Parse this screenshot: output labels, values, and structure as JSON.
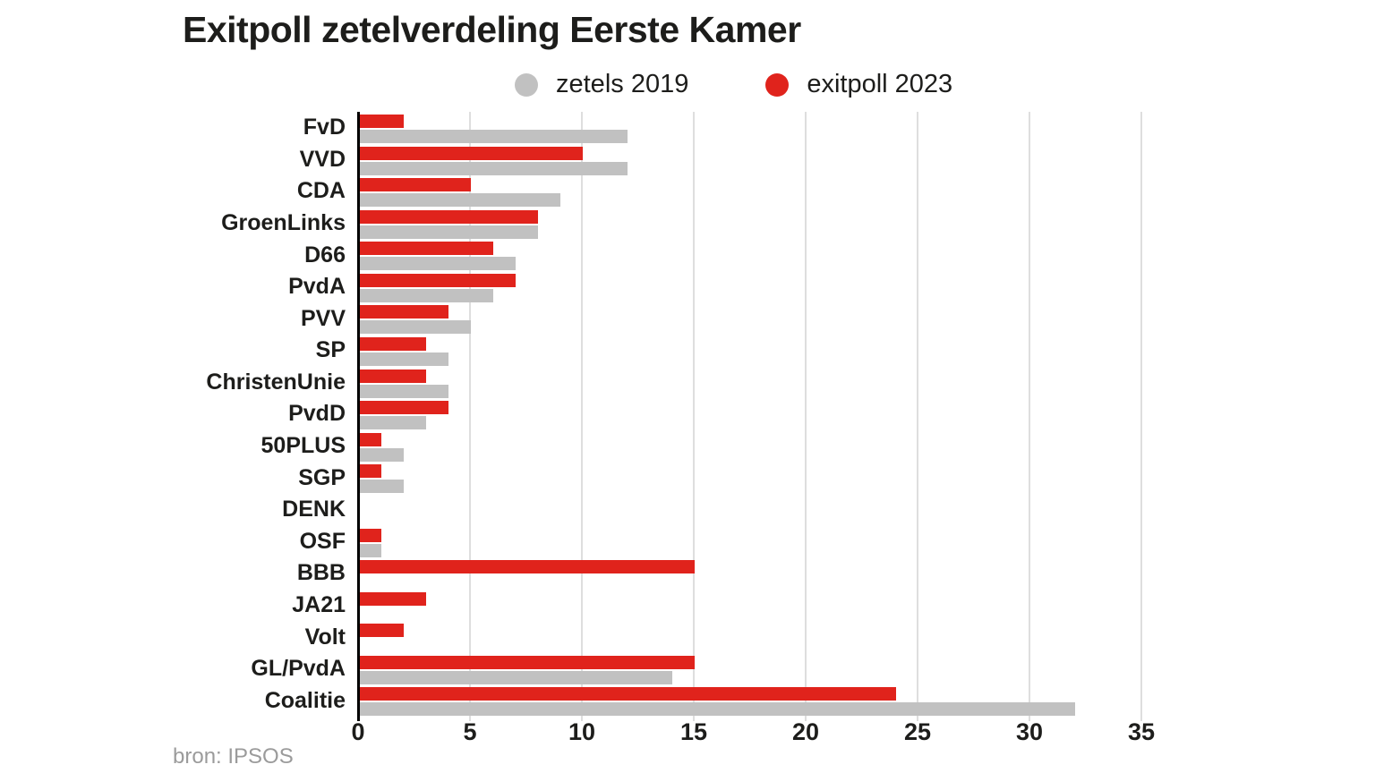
{
  "title": "Exitpoll zetelverdeling Eerste Kamer",
  "source": "bron: IPSOS",
  "colors": {
    "exitpoll_2023": "#e0231c",
    "zetels_2019": "#c1c1c1",
    "gridline": "#dedede",
    "axis": "#000000",
    "text": "#1d1d1b",
    "source_text": "#9b9b9b",
    "background": "#ffffff"
  },
  "legend": [
    {
      "label": "zetels 2019",
      "color": "#c1c1c1"
    },
    {
      "label": "exitpoll 2023",
      "color": "#e0231c"
    }
  ],
  "chart_data": {
    "type": "bar",
    "orientation": "horizontal",
    "title": "Exitpoll zetelverdeling Eerste Kamer",
    "categories": [
      "FvD",
      "VVD",
      "CDA",
      "GroenLinks",
      "D66",
      "PvdA",
      "PVV",
      "SP",
      "ChristenUnie",
      "PvdD",
      "50PLUS",
      "SGP",
      "DENK",
      "OSF",
      "BBB",
      "JA21",
      "Volt",
      "GL/PvdA",
      "Coalitie"
    ],
    "series": [
      {
        "name": "exitpoll 2023",
        "color": "#e0231c",
        "values": [
          2,
          10,
          5,
          8,
          6,
          7,
          4,
          3,
          3,
          4,
          1,
          1,
          0,
          1,
          15,
          3,
          2,
          15,
          24
        ]
      },
      {
        "name": "zetels 2019",
        "color": "#c1c1c1",
        "values": [
          12,
          12,
          9,
          8,
          7,
          6,
          5,
          4,
          4,
          3,
          2,
          2,
          0,
          1,
          0,
          0,
          0,
          14,
          32
        ]
      }
    ],
    "xlabel": "",
    "ylabel": "",
    "x_ticks": [
      0,
      5,
      10,
      15,
      20,
      25,
      30,
      35
    ],
    "xlim": [
      0,
      35
    ],
    "grid": true,
    "legend_position": "top"
  }
}
